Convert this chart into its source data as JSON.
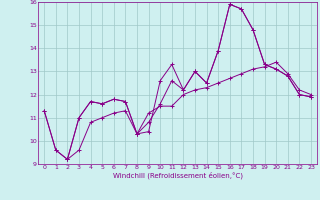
{
  "title": "",
  "xlabel": "Windchill (Refroidissement éolien,°C)",
  "background_color": "#cff0f0",
  "grid_color": "#a0c8c8",
  "line_color": "#880088",
  "xlim": [
    -0.5,
    23.5
  ],
  "ylim": [
    9,
    16
  ],
  "yticks": [
    9,
    10,
    11,
    12,
    13,
    14,
    15,
    16
  ],
  "xticks": [
    0,
    1,
    2,
    3,
    4,
    5,
    6,
    7,
    8,
    9,
    10,
    11,
    12,
    13,
    14,
    15,
    16,
    17,
    18,
    19,
    20,
    21,
    22,
    23
  ],
  "series1_x": [
    0,
    1,
    2,
    3,
    4,
    5,
    6,
    7,
    8,
    9,
    10,
    11,
    12,
    13,
    14,
    15,
    16,
    17,
    18,
    19,
    20,
    21,
    22,
    23
  ],
  "series1_y": [
    11.3,
    9.6,
    9.2,
    11.0,
    11.7,
    11.6,
    11.8,
    11.7,
    10.3,
    10.4,
    12.6,
    13.3,
    12.2,
    13.0,
    12.5,
    13.9,
    15.9,
    15.7,
    14.8,
    13.3,
    13.1,
    12.8,
    12.0,
    11.9
  ],
  "series2_x": [
    0,
    1,
    2,
    3,
    4,
    5,
    6,
    7,
    8,
    9,
    10,
    11,
    12,
    13,
    14,
    15,
    16,
    17,
    18,
    19,
    20,
    21,
    22,
    23
  ],
  "series2_y": [
    11.3,
    9.6,
    9.2,
    11.0,
    11.7,
    11.6,
    11.8,
    11.7,
    10.3,
    11.2,
    11.5,
    11.5,
    12.0,
    12.2,
    12.3,
    12.5,
    12.7,
    12.9,
    13.1,
    13.2,
    13.4,
    12.9,
    12.2,
    12.0
  ],
  "series3_x": [
    2,
    3,
    4,
    5,
    6,
    7,
    8,
    9,
    10,
    11,
    12,
    13,
    14,
    15,
    16,
    17,
    18,
    19,
    20,
    21,
    22,
    23
  ],
  "series3_y": [
    9.2,
    9.6,
    10.8,
    11.0,
    11.2,
    11.3,
    10.3,
    10.8,
    11.6,
    12.6,
    12.2,
    13.0,
    12.5,
    13.9,
    15.9,
    15.7,
    14.8,
    13.3,
    13.1,
    12.8,
    12.0,
    11.9
  ]
}
